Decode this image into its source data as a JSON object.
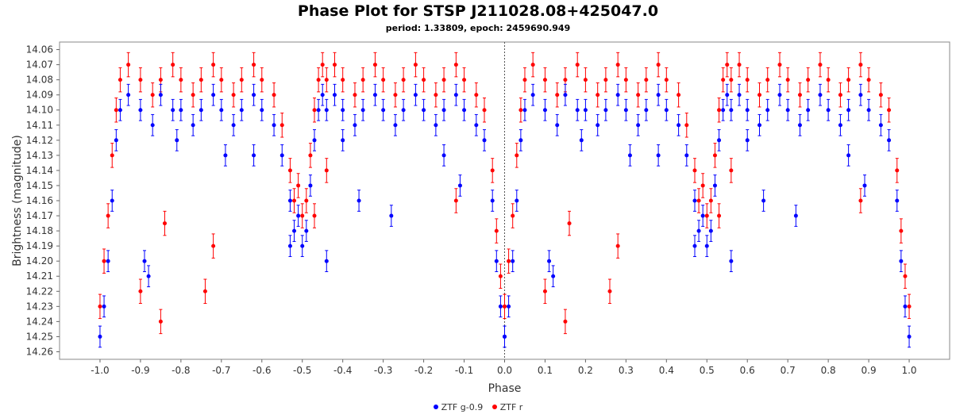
{
  "chart_data": {
    "type": "scatter",
    "title": "Phase Plot for STSP J211028.08+425047.0",
    "subtitle": "period: 1.33809, epoch: 2459690.949",
    "xlabel": "Phase",
    "ylabel": "Brightness (magnitude)",
    "xlim": [
      -1.1,
      1.1
    ],
    "ylim": [
      14.055,
      14.265
    ],
    "y_inverted": true,
    "grid": false,
    "legend_position": "bottom-center",
    "x_ticks": [
      "-1.0",
      "-0.9",
      "-0.8",
      "-0.7",
      "-0.6",
      "-0.5",
      "-0.4",
      "-0.3",
      "-0.2",
      "-0.1",
      "0.0",
      "0.1",
      "0.2",
      "0.3",
      "0.4",
      "0.5",
      "0.6",
      "0.7",
      "0.8",
      "0.9",
      "1.0"
    ],
    "y_ticks": [
      "14.06",
      "14.07",
      "14.08",
      "14.09",
      "14.10",
      "14.11",
      "14.12",
      "14.13",
      "14.14",
      "14.15",
      "14.16",
      "14.17",
      "14.18",
      "14.19",
      "14.20",
      "14.21",
      "14.22",
      "14.23",
      "14.24",
      "14.25",
      "14.26"
    ],
    "series": [
      {
        "name": "ZTF g-0.9",
        "color": "#0000ff",
        "x": [
          -1.0,
          -0.99,
          -0.98,
          -0.97,
          -0.96,
          -0.95,
          -0.93,
          -0.9,
          -0.87,
          -0.85,
          -0.82,
          -0.8,
          -0.77,
          -0.75,
          -0.72,
          -0.7,
          -0.67,
          -0.65,
          -0.62,
          -0.6,
          -0.57,
          -0.55,
          -0.53,
          -0.52,
          -0.51,
          -0.5,
          -0.49,
          -0.48,
          -0.47,
          -0.46,
          -0.45,
          -0.44,
          -0.42,
          -0.4,
          -0.37,
          -0.35,
          -0.32,
          -0.3,
          -0.27,
          -0.25,
          -0.22,
          -0.2,
          -0.17,
          -0.15,
          -0.12,
          -0.1,
          -0.07,
          -0.05,
          -0.03,
          -0.02,
          -0.01,
          0.0,
          -0.89,
          -0.88,
          -0.53,
          -0.44,
          -0.36,
          -0.28,
          -0.11,
          -0.15,
          -0.4,
          -0.62,
          -0.81,
          -0.69
        ],
        "y": [
          14.25,
          14.23,
          14.2,
          14.16,
          14.12,
          14.1,
          14.09,
          14.1,
          14.11,
          14.09,
          14.1,
          14.1,
          14.11,
          14.1,
          14.09,
          14.1,
          14.11,
          14.1,
          14.09,
          14.1,
          14.11,
          14.13,
          14.16,
          14.18,
          14.17,
          14.19,
          14.18,
          14.15,
          14.12,
          14.1,
          14.09,
          14.1,
          14.09,
          14.1,
          14.11,
          14.1,
          14.09,
          14.1,
          14.11,
          14.1,
          14.09,
          14.1,
          14.11,
          14.1,
          14.09,
          14.1,
          14.11,
          14.12,
          14.16,
          14.2,
          14.23,
          14.25,
          14.2,
          14.21,
          14.19,
          14.2,
          14.16,
          14.17,
          14.15,
          14.13,
          14.12,
          14.13,
          14.12,
          14.13
        ],
        "err": 0.007
      },
      {
        "name": "ZTF r",
        "color": "#ff0000",
        "x": [
          -1.0,
          -0.99,
          -0.98,
          -0.97,
          -0.96,
          -0.95,
          -0.93,
          -0.9,
          -0.87,
          -0.85,
          -0.82,
          -0.8,
          -0.77,
          -0.75,
          -0.72,
          -0.7,
          -0.67,
          -0.65,
          -0.62,
          -0.6,
          -0.57,
          -0.55,
          -0.53,
          -0.52,
          -0.51,
          -0.5,
          -0.49,
          -0.48,
          -0.47,
          -0.46,
          -0.45,
          -0.44,
          -0.42,
          -0.4,
          -0.37,
          -0.35,
          -0.32,
          -0.3,
          -0.27,
          -0.25,
          -0.22,
          -0.2,
          -0.17,
          -0.15,
          -0.12,
          -0.1,
          -0.07,
          -0.05,
          -0.03,
          -0.02,
          -0.01,
          0.0,
          -0.9,
          -0.85,
          -0.84,
          -0.74,
          -0.72,
          -0.47,
          -0.44,
          -0.12
        ],
        "y": [
          14.23,
          14.2,
          14.17,
          14.13,
          14.1,
          14.08,
          14.07,
          14.08,
          14.09,
          14.08,
          14.07,
          14.08,
          14.09,
          14.08,
          14.07,
          14.08,
          14.09,
          14.08,
          14.07,
          14.08,
          14.09,
          14.11,
          14.14,
          14.16,
          14.15,
          14.17,
          14.16,
          14.13,
          14.1,
          14.08,
          14.07,
          14.08,
          14.07,
          14.08,
          14.09,
          14.08,
          14.07,
          14.08,
          14.09,
          14.08,
          14.07,
          14.08,
          14.09,
          14.08,
          14.07,
          14.08,
          14.09,
          14.1,
          14.14,
          14.18,
          14.21,
          14.23,
          14.22,
          14.24,
          14.175,
          14.22,
          14.19,
          14.17,
          14.14,
          14.16
        ],
        "err": 0.008
      }
    ],
    "mirror_shift": 1.0
  }
}
